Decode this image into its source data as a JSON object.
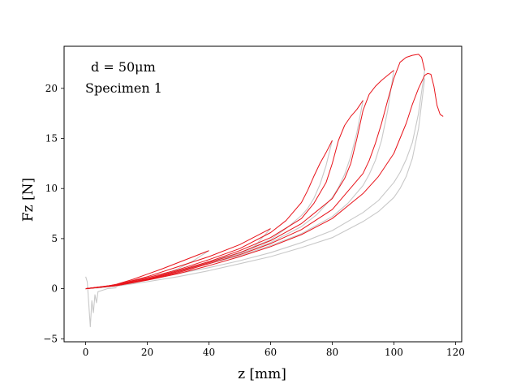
{
  "chart_data": {
    "type": "line",
    "xlabel": "z [mm]",
    "ylabel": "Fz [N]",
    "xlim": [
      -7,
      122
    ],
    "ylim": [
      -5.3,
      24.2
    ],
    "xticks": [
      0,
      20,
      40,
      60,
      80,
      100,
      120
    ],
    "yticks": [
      -5,
      0,
      5,
      10,
      15,
      20
    ],
    "grid": false,
    "annotations": [
      "d = 50μm",
      "Specimen 1"
    ],
    "colors": {
      "loading": "#e8141b",
      "unloading": "#c8c8c8",
      "axes": "#000000"
    },
    "series": [
      {
        "role": "unloading",
        "x": [
          0,
          0.5,
          1,
          1.5,
          2,
          2.5,
          3,
          3.5,
          4,
          5,
          7,
          10
        ],
        "y": [
          1.2,
          0.7,
          -1.5,
          -3.8,
          -1.2,
          -2.4,
          -0.6,
          -1.4,
          -0.3,
          -0.2,
          0,
          0.1
        ]
      },
      {
        "role": "loading",
        "x": [
          0,
          5,
          10,
          15,
          20,
          25,
          30,
          35,
          40
        ],
        "y": [
          0,
          0.15,
          0.45,
          0.9,
          1.45,
          2.0,
          2.6,
          3.2,
          3.8
        ]
      },
      {
        "role": "unloading",
        "x": [
          40,
          35,
          30,
          25,
          20,
          15,
          10,
          5,
          0
        ],
        "y": [
          3.8,
          2.8,
          2.0,
          1.4,
          0.9,
          0.55,
          0.3,
          0.1,
          0
        ]
      },
      {
        "role": "loading",
        "x": [
          0,
          10,
          20,
          30,
          40,
          50,
          55,
          60
        ],
        "y": [
          0,
          0.4,
          1.2,
          2.2,
          3.2,
          4.4,
          5.2,
          6.0
        ]
      },
      {
        "role": "unloading",
        "x": [
          60,
          55,
          50,
          40,
          30,
          20,
          10,
          0
        ],
        "y": [
          6.0,
          4.3,
          3.5,
          2.5,
          1.7,
          1.0,
          0.35,
          0
        ]
      },
      {
        "role": "loading",
        "x": [
          0,
          10,
          20,
          30,
          40,
          50,
          60,
          65,
          70,
          72,
          74,
          76,
          78,
          80
        ],
        "y": [
          0,
          0.4,
          1.1,
          1.9,
          2.9,
          4.0,
          5.6,
          6.8,
          8.6,
          9.8,
          11.2,
          12.5,
          13.6,
          14.8
        ]
      },
      {
        "role": "unloading",
        "x": [
          80,
          78,
          76,
          74,
          72,
          70,
          65,
          60,
          50,
          40,
          30,
          20,
          10,
          0
        ],
        "y": [
          14.8,
          12.3,
          10.4,
          9.0,
          8.0,
          7.3,
          6.0,
          4.9,
          3.6,
          2.7,
          1.8,
          1.0,
          0.35,
          0
        ]
      },
      {
        "role": "loading",
        "x": [
          0,
          10,
          20,
          30,
          40,
          50,
          60,
          70,
          74,
          78,
          80,
          82,
          84,
          86,
          88,
          90
        ],
        "y": [
          0,
          0.35,
          1.0,
          1.8,
          2.7,
          3.8,
          5.1,
          7.0,
          8.5,
          10.6,
          12.5,
          14.8,
          16.3,
          17.2,
          17.9,
          18.8
        ]
      },
      {
        "role": "unloading",
        "x": [
          90,
          88,
          86,
          84,
          82,
          80,
          75,
          70,
          60,
          50,
          40,
          30,
          20,
          10,
          0
        ],
        "y": [
          18.8,
          15.6,
          13.2,
          11.4,
          10.1,
          9.1,
          7.4,
          6.2,
          4.6,
          3.5,
          2.6,
          1.8,
          1.0,
          0.35,
          0
        ]
      },
      {
        "role": "loading",
        "x": [
          0,
          10,
          20,
          30,
          40,
          50,
          60,
          70,
          80,
          84,
          86,
          88,
          90,
          92,
          94,
          96,
          98,
          100
        ],
        "y": [
          0,
          0.35,
          0.95,
          1.7,
          2.6,
          3.6,
          4.8,
          6.5,
          9.0,
          11.0,
          12.5,
          15.0,
          17.8,
          19.4,
          20.2,
          20.8,
          21.3,
          21.8
        ]
      },
      {
        "role": "unloading",
        "x": [
          100,
          98,
          96,
          94,
          92,
          90,
          85,
          80,
          70,
          60,
          50,
          40,
          30,
          20,
          10,
          0
        ],
        "y": [
          21.8,
          17.8,
          14.8,
          12.8,
          11.4,
          10.3,
          8.5,
          7.2,
          5.5,
          4.3,
          3.3,
          2.5,
          1.7,
          1.0,
          0.35,
          0
        ]
      },
      {
        "role": "loading",
        "x": [
          0,
          10,
          20,
          30,
          40,
          50,
          60,
          70,
          80,
          90,
          92,
          94,
          96,
          98,
          100,
          102,
          104,
          106,
          108,
          109,
          110
        ],
        "y": [
          0,
          0.3,
          0.9,
          1.6,
          2.5,
          3.4,
          4.5,
          5.9,
          7.9,
          11.5,
          12.8,
          14.5,
          16.5,
          18.8,
          21.0,
          22.6,
          23.1,
          23.3,
          23.4,
          23.1,
          21.8
        ]
      },
      {
        "role": "unloading",
        "x": [
          110,
          108,
          106,
          104,
          102,
          100,
          95,
          90,
          80,
          70,
          60,
          50,
          40,
          30,
          20,
          10,
          0
        ],
        "y": [
          21.8,
          17.5,
          14.6,
          12.9,
          11.6,
          10.6,
          8.8,
          7.6,
          5.8,
          4.6,
          3.6,
          2.8,
          2.1,
          1.5,
          0.9,
          0.3,
          0
        ]
      },
      {
        "role": "loading",
        "x": [
          0,
          10,
          20,
          30,
          40,
          50,
          60,
          70,
          80,
          90,
          95,
          100,
          104,
          106,
          108,
          110,
          111,
          112,
          113,
          114,
          115,
          116
        ],
        "y": [
          0,
          0.3,
          0.85,
          1.5,
          2.3,
          3.2,
          4.2,
          5.4,
          7.0,
          9.5,
          11.2,
          13.5,
          16.5,
          18.4,
          20.0,
          21.3,
          21.5,
          21.4,
          20.2,
          18.3,
          17.4,
          17.2
        ]
      },
      {
        "role": "unloading",
        "x": [
          110,
          108,
          106,
          104,
          102,
          100,
          95,
          90,
          80,
          70,
          60,
          50,
          40,
          30,
          20,
          10,
          0
        ],
        "y": [
          21.0,
          16.0,
          13.0,
          11.2,
          10.0,
          9.1,
          7.7,
          6.7,
          5.1,
          4.1,
          3.2,
          2.5,
          1.8,
          1.2,
          0.7,
          0.25,
          0
        ]
      }
    ]
  }
}
